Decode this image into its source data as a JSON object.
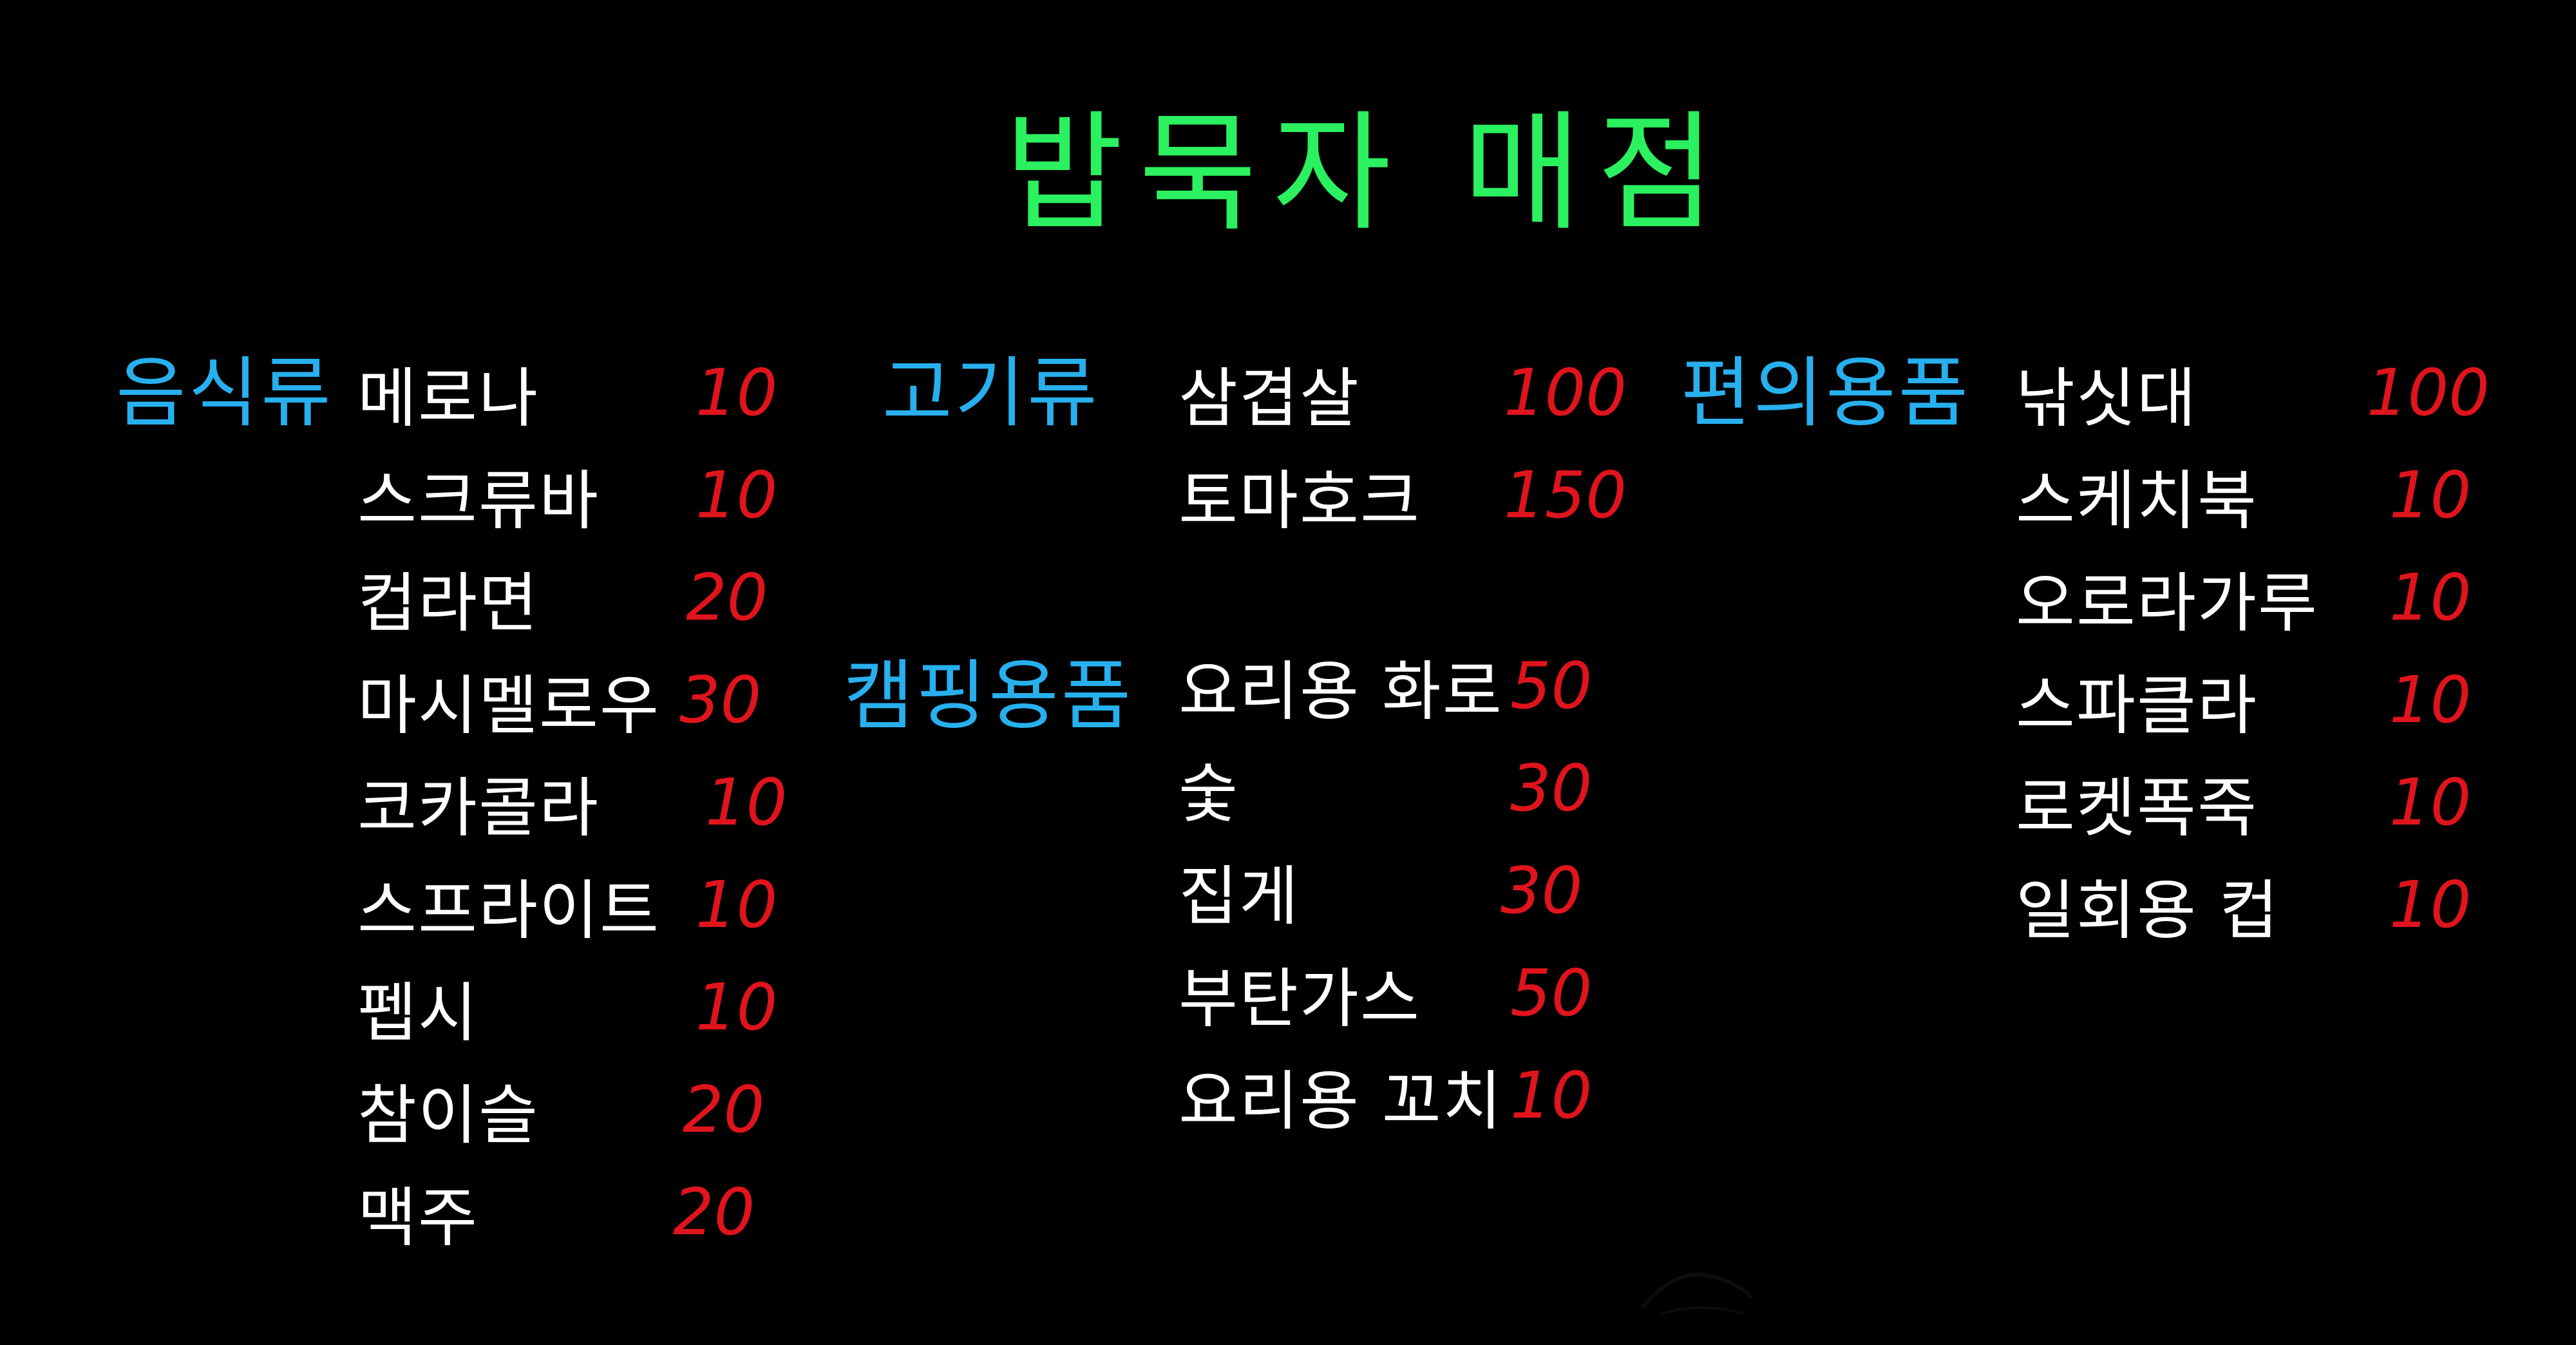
{
  "title": "밥묵자 매점",
  "colors": {
    "background": "#000000",
    "title": "#2bf060",
    "category": "#28b0ee",
    "item": "#ffffff",
    "price": "#e0141c"
  },
  "food": {
    "category": "음식류",
    "items": [
      {
        "name": "메로나",
        "price": "10"
      },
      {
        "name": "스크류바",
        "price": "10"
      },
      {
        "name": "컵라면",
        "price": "20"
      },
      {
        "name": "마시멜로우",
        "price": "30"
      },
      {
        "name": "코카콜라",
        "price": "10"
      },
      {
        "name": "스프라이트",
        "price": "10"
      },
      {
        "name": "펩시",
        "price": "10"
      },
      {
        "name": "참이슬",
        "price": "20"
      },
      {
        "name": "맥주",
        "price": "20"
      }
    ]
  },
  "meat": {
    "category": "고기류",
    "items": [
      {
        "name": "삼겹살",
        "price": "100"
      },
      {
        "name": "토마호크",
        "price": "150"
      }
    ]
  },
  "camping": {
    "category": "캠핑용품",
    "items": [
      {
        "name": "요리용 화로",
        "price": "50"
      },
      {
        "name": "숯",
        "price": "30"
      },
      {
        "name": "집게",
        "price": "30"
      },
      {
        "name": "부탄가스",
        "price": "50"
      },
      {
        "name": "요리용 꼬치",
        "price": "10"
      }
    ]
  },
  "convenience": {
    "category": "편의용품",
    "items": [
      {
        "name": "낚싯대",
        "price": "100"
      },
      {
        "name": "스케치북",
        "price": "10"
      },
      {
        "name": "오로라가루",
        "price": "10"
      },
      {
        "name": "스파클라",
        "price": "10"
      },
      {
        "name": "로켓폭죽",
        "price": "10"
      },
      {
        "name": "일회용 컵",
        "price": "10"
      }
    ]
  }
}
